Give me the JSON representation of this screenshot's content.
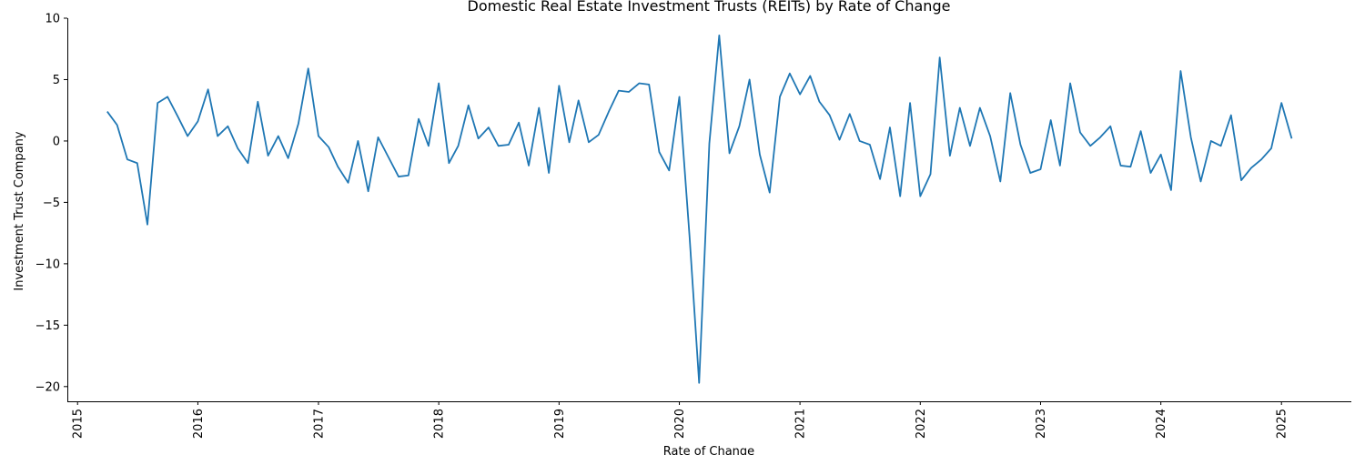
{
  "chart_data": {
    "type": "line",
    "title": "Domestic Real Estate Investment Trusts (REITs) by Rate of Change",
    "xlabel": "Rate of Change",
    "ylabel": "Investment Trust Company",
    "ylim": [
      -21.2,
      10
    ],
    "yticks": [
      10,
      5,
      0,
      -5,
      -10,
      -15,
      -20
    ],
    "xlim": [
      "2014-12-01",
      "2025-08-01"
    ],
    "xticks": [
      "2015",
      "2016",
      "2017",
      "2018",
      "2019",
      "2020",
      "2021",
      "2022",
      "2023",
      "2024",
      "2025"
    ],
    "grid": false,
    "line_color": "#1f77b4",
    "series": [
      {
        "x": [
          "2015-04",
          "2015-05",
          "2015-06",
          "2015-07",
          "2015-08",
          "2015-09",
          "2015-10",
          "2015-11",
          "2015-12",
          "2016-01",
          "2016-02",
          "2016-03",
          "2016-04",
          "2016-05",
          "2016-06",
          "2016-07",
          "2016-08",
          "2016-09",
          "2016-10",
          "2016-11",
          "2016-12",
          "2017-01",
          "2017-02",
          "2017-03",
          "2017-04",
          "2017-05",
          "2017-06",
          "2017-07",
          "2017-08",
          "2017-09",
          "2017-10",
          "2017-11",
          "2017-12",
          "2018-01",
          "2018-02",
          "2018-03",
          "2018-04",
          "2018-05",
          "2018-06",
          "2018-07",
          "2018-08",
          "2018-09",
          "2018-10",
          "2018-11",
          "2018-12",
          "2019-01",
          "2019-02",
          "2019-03",
          "2019-04",
          "2019-05",
          "2019-06",
          "2019-07",
          "2019-08",
          "2019-09",
          "2019-10",
          "2019-11",
          "2019-12",
          "2020-01",
          "2020-02",
          "2020-03",
          "2020-04",
          "2020-05",
          "2020-06",
          "2020-07",
          "2020-08",
          "2020-09",
          "2020-10",
          "2020-11",
          "2020-12",
          "2021-01",
          "2021-02",
          "2021-03",
          "2021-04",
          "2021-05",
          "2021-06",
          "2021-07",
          "2021-08",
          "2021-09",
          "2021-10",
          "2021-11",
          "2021-12",
          "2022-01",
          "2022-02",
          "2022-03",
          "2022-04",
          "2022-05",
          "2022-06",
          "2022-07",
          "2022-08",
          "2022-09",
          "2022-10",
          "2022-11",
          "2022-12",
          "2023-01",
          "2023-02",
          "2023-03",
          "2023-04",
          "2023-05",
          "2023-06",
          "2023-07",
          "2023-08",
          "2023-09",
          "2023-10",
          "2023-11",
          "2023-12",
          "2024-01",
          "2024-02",
          "2024-03",
          "2024-04",
          "2024-05",
          "2024-06",
          "2024-07",
          "2024-08",
          "2024-09",
          "2024-10",
          "2024-11",
          "2024-12",
          "2025-01",
          "2025-02"
        ],
        "values": [
          2.4,
          1.3,
          -1.5,
          -1.8,
          -6.8,
          3.1,
          3.6,
          2.0,
          0.4,
          1.6,
          4.2,
          0.4,
          1.2,
          -0.6,
          -1.8,
          3.2,
          -1.2,
          0.4,
          -1.4,
          1.4,
          5.9,
          0.4,
          -0.5,
          -2.1,
          -3.4,
          0.0,
          -4.1,
          0.3,
          -1.3,
          -2.9,
          -2.8,
          1.8,
          -0.4,
          4.7,
          -1.8,
          -0.4,
          2.9,
          0.2,
          1.1,
          -0.4,
          -0.3,
          1.5,
          -2.0,
          2.7,
          -2.6,
          4.5,
          -0.1,
          3.3,
          -0.1,
          0.5,
          2.4,
          4.1,
          4.0,
          4.7,
          4.6,
          -0.9,
          -2.4,
          3.6,
          -7.8,
          -19.7,
          -0.2,
          8.6,
          -1.0,
          1.2,
          5.0,
          -1.1,
          -4.2,
          3.6,
          5.5,
          3.8,
          5.3,
          3.2,
          2.1,
          0.1,
          2.2,
          0.0,
          -0.3,
          -3.1,
          1.1,
          -4.5,
          3.1,
          -4.5,
          -2.7,
          6.8,
          -1.2,
          2.7,
          -0.4,
          2.7,
          0.4,
          -3.3,
          3.9,
          -0.3,
          -2.6,
          -2.3,
          1.7,
          -2.0,
          4.7,
          0.7,
          -0.4,
          0.3,
          1.2,
          -2.0,
          -2.1,
          0.8,
          -2.6,
          -1.1,
          -4.0,
          5.7,
          0.3,
          -3.3,
          0.0,
          -0.4,
          2.1,
          -3.2,
          -2.2,
          -1.5,
          -0.6,
          3.1,
          0.2
        ]
      }
    ]
  }
}
